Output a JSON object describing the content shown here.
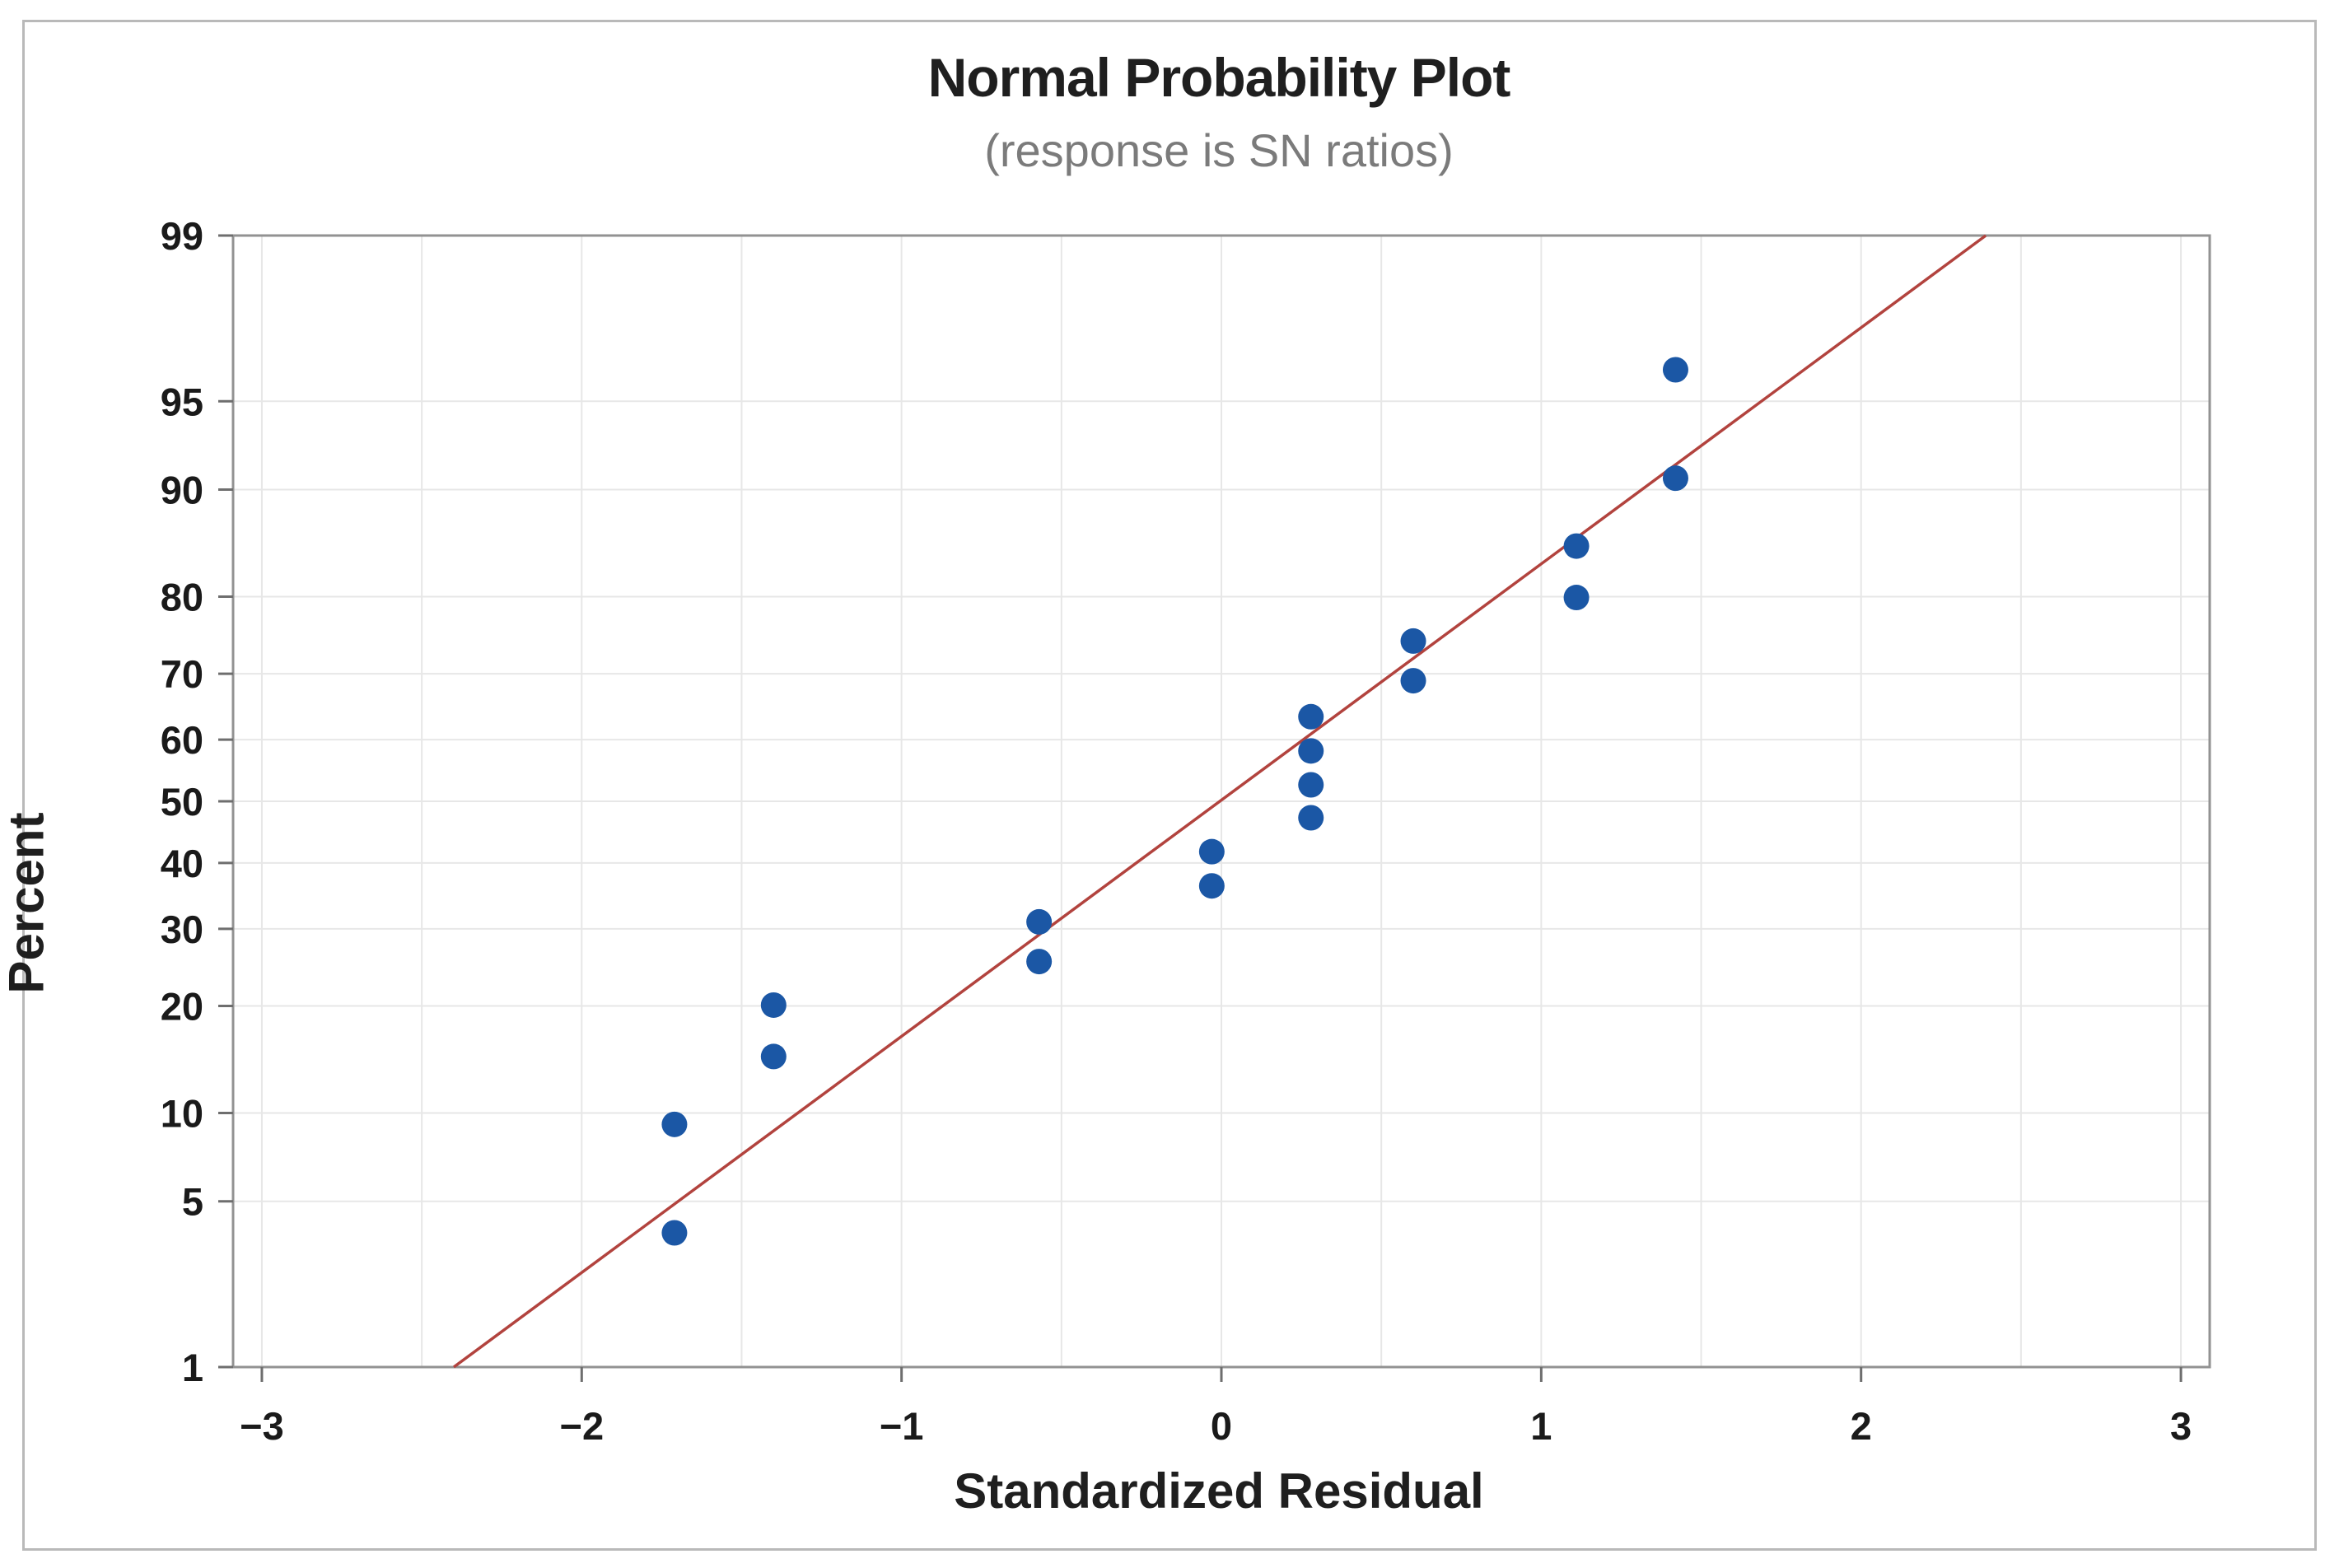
{
  "chart_data": {
    "type": "scatter",
    "title": "Normal Probability Plot",
    "subtitle": "(response is SN ratios)",
    "xlabel": "Standardized Residual",
    "ylabel": "Percent",
    "y_scale": "normal-probability",
    "grid": true,
    "x_gridline_step": 0.5,
    "xlim": [
      -3.09,
      3.09
    ],
    "ylim_percent": [
      1,
      99
    ],
    "x_ticks": [
      {
        "v": -3,
        "label": "−3"
      },
      {
        "v": -2,
        "label": "−2"
      },
      {
        "v": -1,
        "label": "−1"
      },
      {
        "v": 0,
        "label": "0"
      },
      {
        "v": 1,
        "label": "1"
      },
      {
        "v": 2,
        "label": "2"
      },
      {
        "v": 3,
        "label": "3"
      }
    ],
    "y_ticks_percent": [
      {
        "v": 1,
        "label": "1"
      },
      {
        "v": 5,
        "label": "5"
      },
      {
        "v": 10,
        "label": "10"
      },
      {
        "v": 20,
        "label": "20"
      },
      {
        "v": 30,
        "label": "30"
      },
      {
        "v": 40,
        "label": "40"
      },
      {
        "v": 50,
        "label": "50"
      },
      {
        "v": 60,
        "label": "60"
      },
      {
        "v": 70,
        "label": "70"
      },
      {
        "v": 80,
        "label": "80"
      },
      {
        "v": 90,
        "label": "90"
      },
      {
        "v": 95,
        "label": "95"
      },
      {
        "v": 99,
        "label": "99"
      }
    ],
    "points": [
      {
        "x": -1.71,
        "pct": 3.8
      },
      {
        "x": -1.71,
        "pct": 9.2
      },
      {
        "x": -1.4,
        "pct": 14.7
      },
      {
        "x": -1.4,
        "pct": 20.1
      },
      {
        "x": -0.57,
        "pct": 25.5
      },
      {
        "x": -0.57,
        "pct": 31.0
      },
      {
        "x": -0.03,
        "pct": 36.4
      },
      {
        "x": -0.03,
        "pct": 41.8
      },
      {
        "x": 0.28,
        "pct": 47.3
      },
      {
        "x": 0.28,
        "pct": 52.7
      },
      {
        "x": 0.28,
        "pct": 58.2
      },
      {
        "x": 0.28,
        "pct": 63.6
      },
      {
        "x": 0.6,
        "pct": 69.0
      },
      {
        "x": 0.6,
        "pct": 74.5
      },
      {
        "x": 1.11,
        "pct": 79.9
      },
      {
        "x": 1.11,
        "pct": 85.3
      },
      {
        "x": 1.42,
        "pct": 90.8
      },
      {
        "x": 1.42,
        "pct": 96.2
      }
    ],
    "fit_line": {
      "x1": -2.4,
      "pct1": 1.0,
      "x2": 2.39,
      "pct2": 99.0
    }
  },
  "colors": {
    "point_fill": "#1b57a5",
    "fit_line": "#b2433e",
    "gridline": "#e7e7e7",
    "plot_border": "#929292",
    "tick_mark": "#6e6e6e",
    "tick_label": "#1a1a1a",
    "title_text": "#1f1f1f",
    "subtitle_text": "#7b7b7b",
    "outer_frame": "#b9b9b9",
    "background": "#ffffff"
  }
}
